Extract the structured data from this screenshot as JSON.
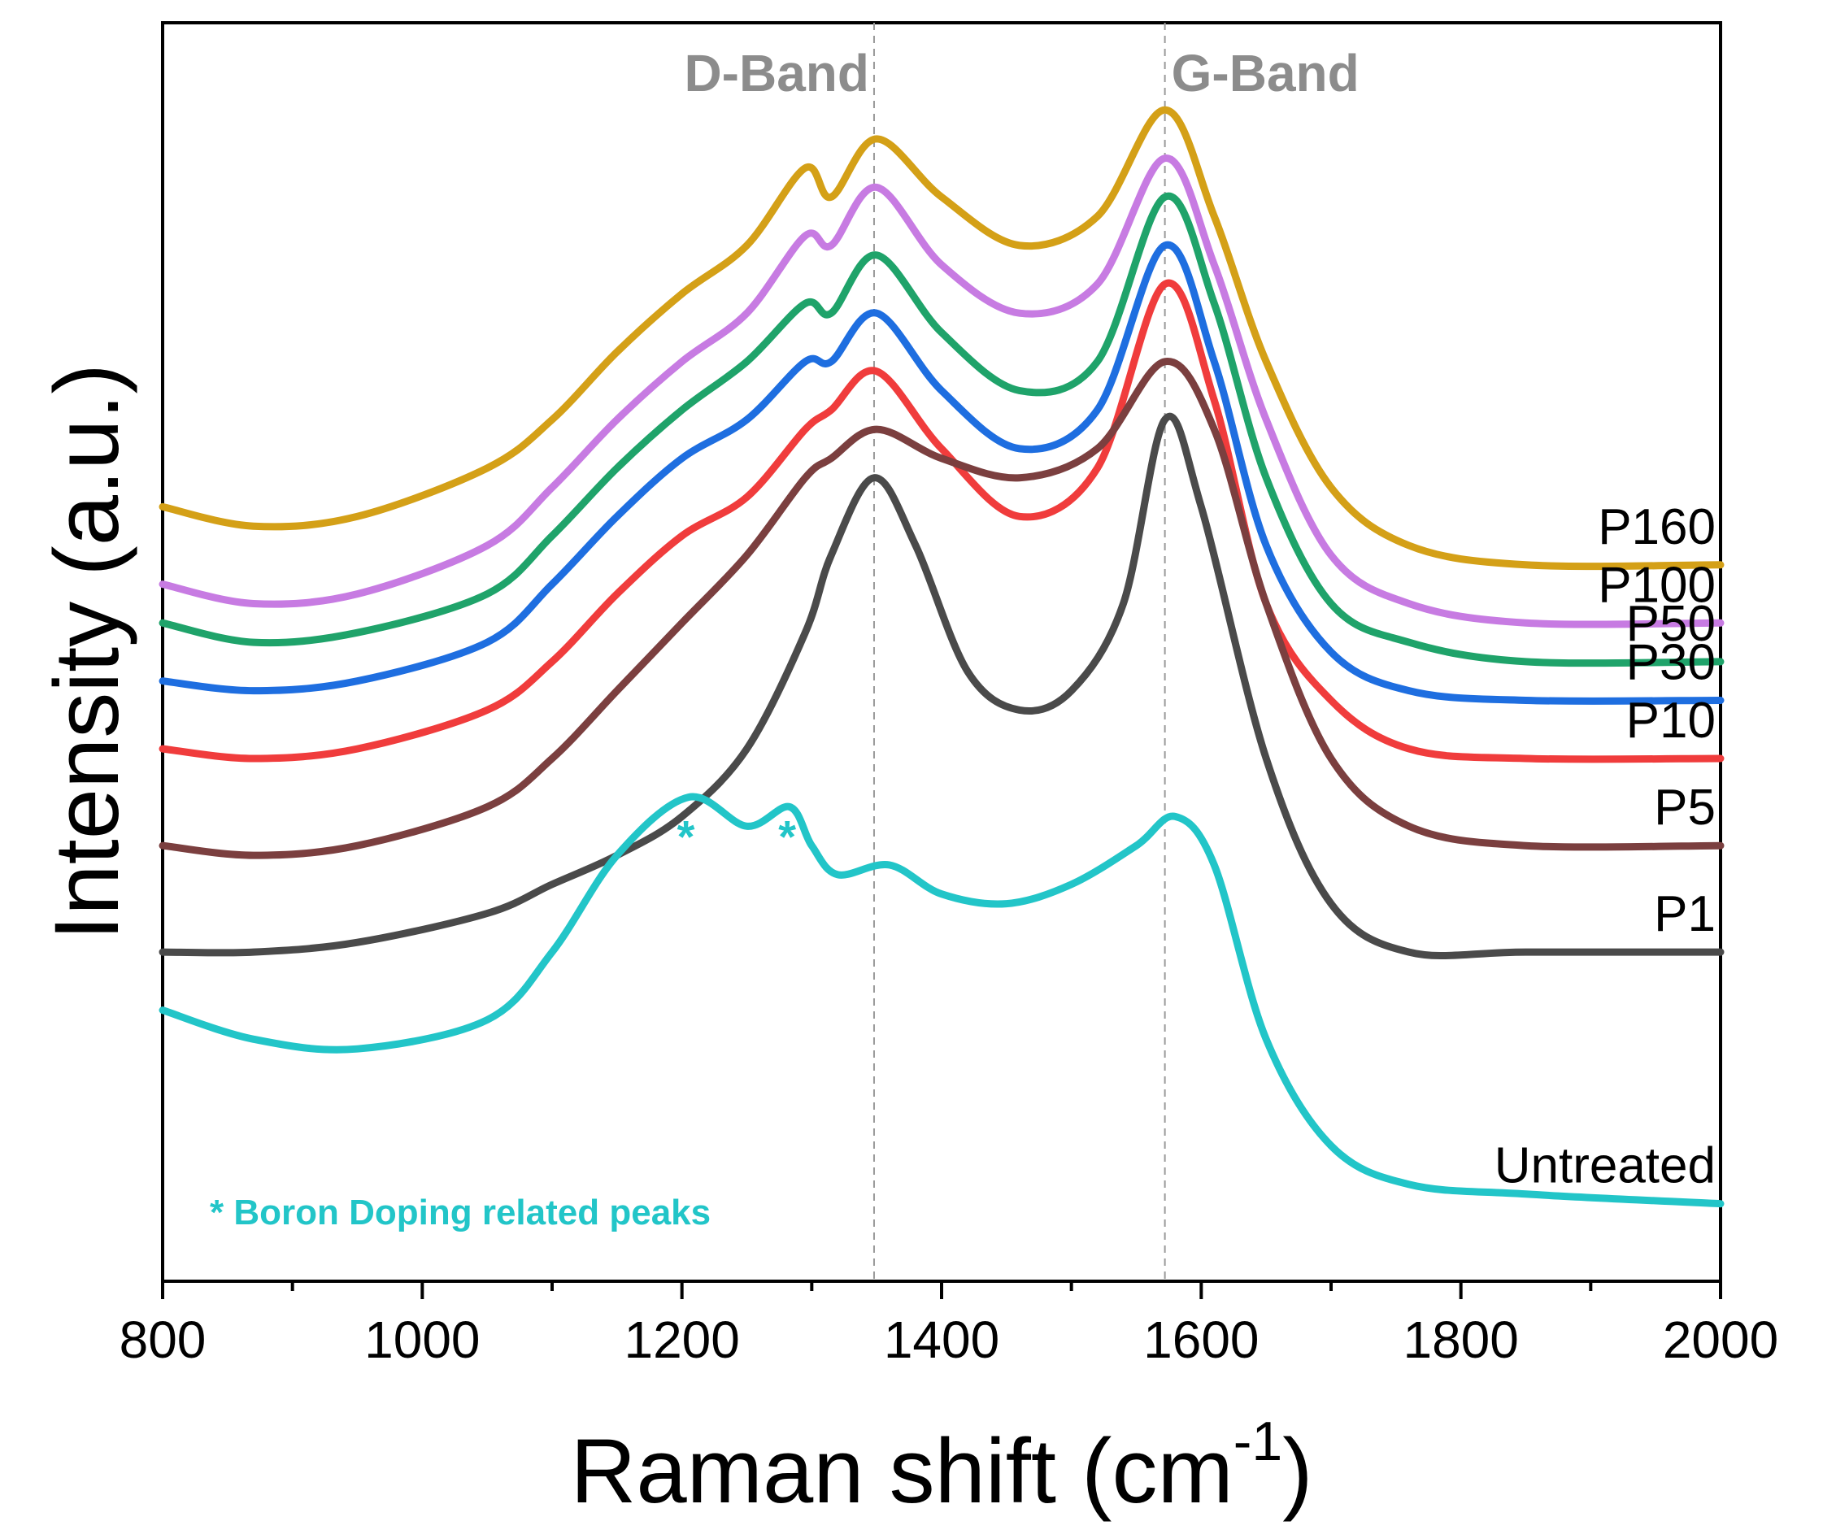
{
  "chart_data": {
    "type": "line",
    "title": "",
    "xlabel": "Raman shift (cm",
    "xlabel_sup": "-1",
    "xlabel_close": ")",
    "ylabel": "Intensity (a.u.)",
    "xlim": [
      800,
      2000
    ],
    "x_ticks": [
      "800",
      "1000",
      "1200",
      "1400",
      "1600",
      "1800",
      "2000"
    ],
    "x_tick_values": [
      800,
      1000,
      1200,
      1400,
      1600,
      1800,
      2000
    ],
    "y_ticks": "none",
    "grid": false,
    "legend": "labels at right end of each trace",
    "reference_lines": [
      {
        "label": "D-Band",
        "x": 1348
      },
      {
        "label": "G-Band",
        "x": 1572
      }
    ],
    "annotation": "* Boron Doping related peaks",
    "annotation_markers": [
      {
        "text": "*",
        "x": 1205
      },
      {
        "text": "*",
        "x": 1283
      }
    ],
    "series": [
      {
        "name": "P160",
        "color": "#d4a017",
        "points": [
          [
            800,
            0.9
          ],
          [
            870,
            0.88
          ],
          [
            950,
            0.89
          ],
          [
            1050,
            0.94
          ],
          [
            1100,
            0.99
          ],
          [
            1150,
            1.06
          ],
          [
            1200,
            1.12
          ],
          [
            1250,
            1.17
          ],
          [
            1295,
            1.25
          ],
          [
            1315,
            1.22
          ],
          [
            1350,
            1.28
          ],
          [
            1400,
            1.22
          ],
          [
            1460,
            1.17
          ],
          [
            1520,
            1.2
          ],
          [
            1572,
            1.31
          ],
          [
            1610,
            1.2
          ],
          [
            1650,
            1.05
          ],
          [
            1700,
            0.92
          ],
          [
            1760,
            0.86
          ],
          [
            1850,
            0.84
          ],
          [
            2000,
            0.84
          ]
        ]
      },
      {
        "name": "P100",
        "color": "#c77be2",
        "points": [
          [
            800,
            0.82
          ],
          [
            870,
            0.8
          ],
          [
            950,
            0.81
          ],
          [
            1050,
            0.86
          ],
          [
            1100,
            0.92
          ],
          [
            1150,
            0.99
          ],
          [
            1200,
            1.05
          ],
          [
            1250,
            1.1
          ],
          [
            1295,
            1.18
          ],
          [
            1315,
            1.17
          ],
          [
            1350,
            1.23
          ],
          [
            1400,
            1.15
          ],
          [
            1460,
            1.1
          ],
          [
            1520,
            1.13
          ],
          [
            1572,
            1.26
          ],
          [
            1610,
            1.15
          ],
          [
            1650,
            0.99
          ],
          [
            1700,
            0.85
          ],
          [
            1760,
            0.8
          ],
          [
            1850,
            0.78
          ],
          [
            2000,
            0.78
          ]
        ]
      },
      {
        "name": "P50",
        "color": "#1fa36a",
        "points": [
          [
            800,
            0.78
          ],
          [
            870,
            0.76
          ],
          [
            950,
            0.77
          ],
          [
            1050,
            0.81
          ],
          [
            1100,
            0.87
          ],
          [
            1150,
            0.94
          ],
          [
            1200,
            1.0
          ],
          [
            1250,
            1.05
          ],
          [
            1295,
            1.11
          ],
          [
            1315,
            1.1
          ],
          [
            1350,
            1.16
          ],
          [
            1400,
            1.08
          ],
          [
            1460,
            1.02
          ],
          [
            1520,
            1.05
          ],
          [
            1572,
            1.22
          ],
          [
            1610,
            1.11
          ],
          [
            1650,
            0.93
          ],
          [
            1700,
            0.8
          ],
          [
            1760,
            0.76
          ],
          [
            1850,
            0.74
          ],
          [
            2000,
            0.74
          ]
        ]
      },
      {
        "name": "P30",
        "color": "#1e6ee0",
        "points": [
          [
            800,
            0.72
          ],
          [
            870,
            0.71
          ],
          [
            950,
            0.72
          ],
          [
            1050,
            0.76
          ],
          [
            1100,
            0.82
          ],
          [
            1150,
            0.89
          ],
          [
            1200,
            0.95
          ],
          [
            1250,
            0.99
          ],
          [
            1295,
            1.05
          ],
          [
            1315,
            1.05
          ],
          [
            1350,
            1.1
          ],
          [
            1400,
            1.02
          ],
          [
            1460,
            0.96
          ],
          [
            1520,
            1.0
          ],
          [
            1572,
            1.17
          ],
          [
            1610,
            1.05
          ],
          [
            1650,
            0.86
          ],
          [
            1700,
            0.75
          ],
          [
            1760,
            0.71
          ],
          [
            1850,
            0.7
          ],
          [
            2000,
            0.7
          ]
        ]
      },
      {
        "name": "P10",
        "color": "#f03c3c",
        "points": [
          [
            800,
            0.65
          ],
          [
            870,
            0.64
          ],
          [
            950,
            0.65
          ],
          [
            1050,
            0.69
          ],
          [
            1100,
            0.74
          ],
          [
            1150,
            0.81
          ],
          [
            1200,
            0.87
          ],
          [
            1250,
            0.91
          ],
          [
            1295,
            0.98
          ],
          [
            1315,
            1.0
          ],
          [
            1350,
            1.04
          ],
          [
            1400,
            0.96
          ],
          [
            1460,
            0.89
          ],
          [
            1520,
            0.94
          ],
          [
            1572,
            1.13
          ],
          [
            1610,
            1.01
          ],
          [
            1650,
            0.8
          ],
          [
            1700,
            0.7
          ],
          [
            1760,
            0.65
          ],
          [
            1850,
            0.64
          ],
          [
            2000,
            0.64
          ]
        ]
      },
      {
        "name": "P5",
        "color": "#7b3f3f",
        "points": [
          [
            800,
            0.55
          ],
          [
            870,
            0.54
          ],
          [
            950,
            0.55
          ],
          [
            1050,
            0.59
          ],
          [
            1100,
            0.64
          ],
          [
            1150,
            0.71
          ],
          [
            1200,
            0.78
          ],
          [
            1250,
            0.85
          ],
          [
            1295,
            0.93
          ],
          [
            1315,
            0.95
          ],
          [
            1350,
            0.98
          ],
          [
            1400,
            0.95
          ],
          [
            1460,
            0.93
          ],
          [
            1520,
            0.96
          ],
          [
            1572,
            1.05
          ],
          [
            1610,
            0.98
          ],
          [
            1650,
            0.8
          ],
          [
            1700,
            0.64
          ],
          [
            1760,
            0.57
          ],
          [
            1850,
            0.55
          ],
          [
            2000,
            0.55
          ]
        ]
      },
      {
        "name": "P1",
        "color": "#4a4a4a",
        "points": [
          [
            800,
            0.44
          ],
          [
            870,
            0.44
          ],
          [
            950,
            0.45
          ],
          [
            1050,
            0.48
          ],
          [
            1100,
            0.51
          ],
          [
            1150,
            0.54
          ],
          [
            1200,
            0.58
          ],
          [
            1250,
            0.65
          ],
          [
            1295,
            0.77
          ],
          [
            1315,
            0.85
          ],
          [
            1348,
            0.93
          ],
          [
            1380,
            0.86
          ],
          [
            1420,
            0.73
          ],
          [
            1460,
            0.69
          ],
          [
            1500,
            0.71
          ],
          [
            1540,
            0.8
          ],
          [
            1572,
            0.99
          ],
          [
            1600,
            0.9
          ],
          [
            1650,
            0.64
          ],
          [
            1700,
            0.49
          ],
          [
            1760,
            0.44
          ],
          [
            1850,
            0.44
          ],
          [
            2000,
            0.44
          ]
        ]
      },
      {
        "name": "Untreated",
        "color": "#22c5c8",
        "points": [
          [
            800,
            0.38
          ],
          [
            870,
            0.35
          ],
          [
            950,
            0.34
          ],
          [
            1050,
            0.37
          ],
          [
            1100,
            0.44
          ],
          [
            1150,
            0.54
          ],
          [
            1205,
            0.6
          ],
          [
            1250,
            0.57
          ],
          [
            1283,
            0.59
          ],
          [
            1300,
            0.55
          ],
          [
            1320,
            0.52
          ],
          [
            1360,
            0.53
          ],
          [
            1400,
            0.5
          ],
          [
            1450,
            0.49
          ],
          [
            1500,
            0.51
          ],
          [
            1550,
            0.55
          ],
          [
            1580,
            0.58
          ],
          [
            1610,
            0.53
          ],
          [
            1650,
            0.35
          ],
          [
            1700,
            0.24
          ],
          [
            1760,
            0.2
          ],
          [
            1850,
            0.19
          ],
          [
            2000,
            0.18
          ]
        ]
      }
    ]
  }
}
